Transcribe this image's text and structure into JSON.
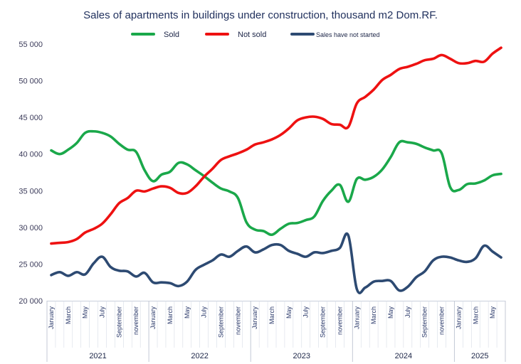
{
  "chart_data": {
    "type": "line",
    "title": "Sales of apartments in buildings under construction, thousand m2 Dom.RF.",
    "xlabel": "",
    "ylabel": "",
    "ylim": [
      20000,
      55000
    ],
    "y_ticks": [
      20000,
      25000,
      30000,
      35000,
      40000,
      45000,
      50000,
      55000
    ],
    "y_tick_labels": [
      "20 000",
      "25 000",
      "30 000",
      "35 000",
      "40 000",
      "45 000",
      "50 000",
      "55 000"
    ],
    "grid": "none",
    "legend_position": "top",
    "month_labels": [
      {
        "index": 0,
        "text": "January"
      },
      {
        "index": 2,
        "text": "March"
      },
      {
        "index": 4,
        "text": "May"
      },
      {
        "index": 6,
        "text": "July"
      },
      {
        "index": 8,
        "text": "September"
      },
      {
        "index": 10,
        "text": "november"
      },
      {
        "index": 12,
        "text": "January"
      },
      {
        "index": 14,
        "text": "March"
      },
      {
        "index": 16,
        "text": "May"
      },
      {
        "index": 18,
        "text": "July"
      },
      {
        "index": 20,
        "text": "September"
      },
      {
        "index": 22,
        "text": "november"
      },
      {
        "index": 24,
        "text": "January"
      },
      {
        "index": 26,
        "text": "March"
      },
      {
        "index": 28,
        "text": "May"
      },
      {
        "index": 30,
        "text": "July"
      },
      {
        "index": 32,
        "text": "September"
      },
      {
        "index": 34,
        "text": "november"
      },
      {
        "index": 36,
        "text": "January"
      },
      {
        "index": 38,
        "text": "March"
      },
      {
        "index": 40,
        "text": "May"
      },
      {
        "index": 42,
        "text": "July"
      },
      {
        "index": 44,
        "text": "September"
      },
      {
        "index": 46,
        "text": "november"
      },
      {
        "index": 48,
        "text": "January"
      },
      {
        "index": 50,
        "text": "March"
      },
      {
        "index": 52,
        "text": "May"
      }
    ],
    "years": [
      {
        "label": "2021",
        "start": 0,
        "end": 11
      },
      {
        "label": "2022",
        "start": 12,
        "end": 23
      },
      {
        "label": "2023",
        "start": 24,
        "end": 35
      },
      {
        "label": "2024",
        "start": 36,
        "end": 47
      },
      {
        "label": "2025",
        "start": 48,
        "end": 53
      }
    ],
    "series": [
      {
        "name": "Sold",
        "color": "#1aa84a",
        "values": [
          40500,
          40000,
          40600,
          41500,
          42900,
          43100,
          42900,
          42400,
          41400,
          40600,
          40300,
          37800,
          36300,
          37200,
          37600,
          38800,
          38600,
          37800,
          37000,
          36100,
          35300,
          34900,
          34000,
          30700,
          29700,
          29500,
          29000,
          29800,
          30500,
          30600,
          31000,
          31500,
          33600,
          35000,
          35800,
          33500,
          36600,
          36500,
          36900,
          37900,
          39600,
          41600,
          41600,
          41400,
          40900,
          40500,
          40100,
          35500,
          35100,
          35900,
          36000,
          36400,
          37100,
          37300
        ]
      },
      {
        "name": "Not sold",
        "color": "#ee1111",
        "values": [
          27800,
          27900,
          28000,
          28400,
          29300,
          29800,
          30500,
          31800,
          33300,
          34000,
          35000,
          34900,
          35300,
          35600,
          35400,
          34700,
          34700,
          35600,
          36900,
          38000,
          39200,
          39700,
          40100,
          40600,
          41300,
          41600,
          42000,
          42600,
          43500,
          44600,
          45000,
          45100,
          44800,
          44100,
          44000,
          43700,
          46900,
          47800,
          48800,
          50100,
          50800,
          51600,
          51900,
          52300,
          52800,
          53000,
          53500,
          53000,
          52400,
          52400,
          52700,
          52600,
          53700,
          54500
        ]
      },
      {
        "name": "Sales have not started",
        "color": "#2d4a72",
        "values": [
          23500,
          23900,
          23400,
          23900,
          23600,
          25100,
          26000,
          24600,
          24100,
          24000,
          23300,
          23800,
          22500,
          22500,
          22400,
          22000,
          22600,
          24200,
          24900,
          25500,
          26300,
          26000,
          26800,
          27400,
          26600,
          27000,
          27600,
          27600,
          26800,
          26400,
          26000,
          26600,
          26500,
          26800,
          27200,
          28900,
          21600,
          21800,
          22600,
          22700,
          22700,
          21400,
          21900,
          23200,
          24000,
          25500,
          26000,
          25900,
          25500,
          25300,
          25800,
          27500,
          26700,
          25900
        ]
      }
    ]
  }
}
